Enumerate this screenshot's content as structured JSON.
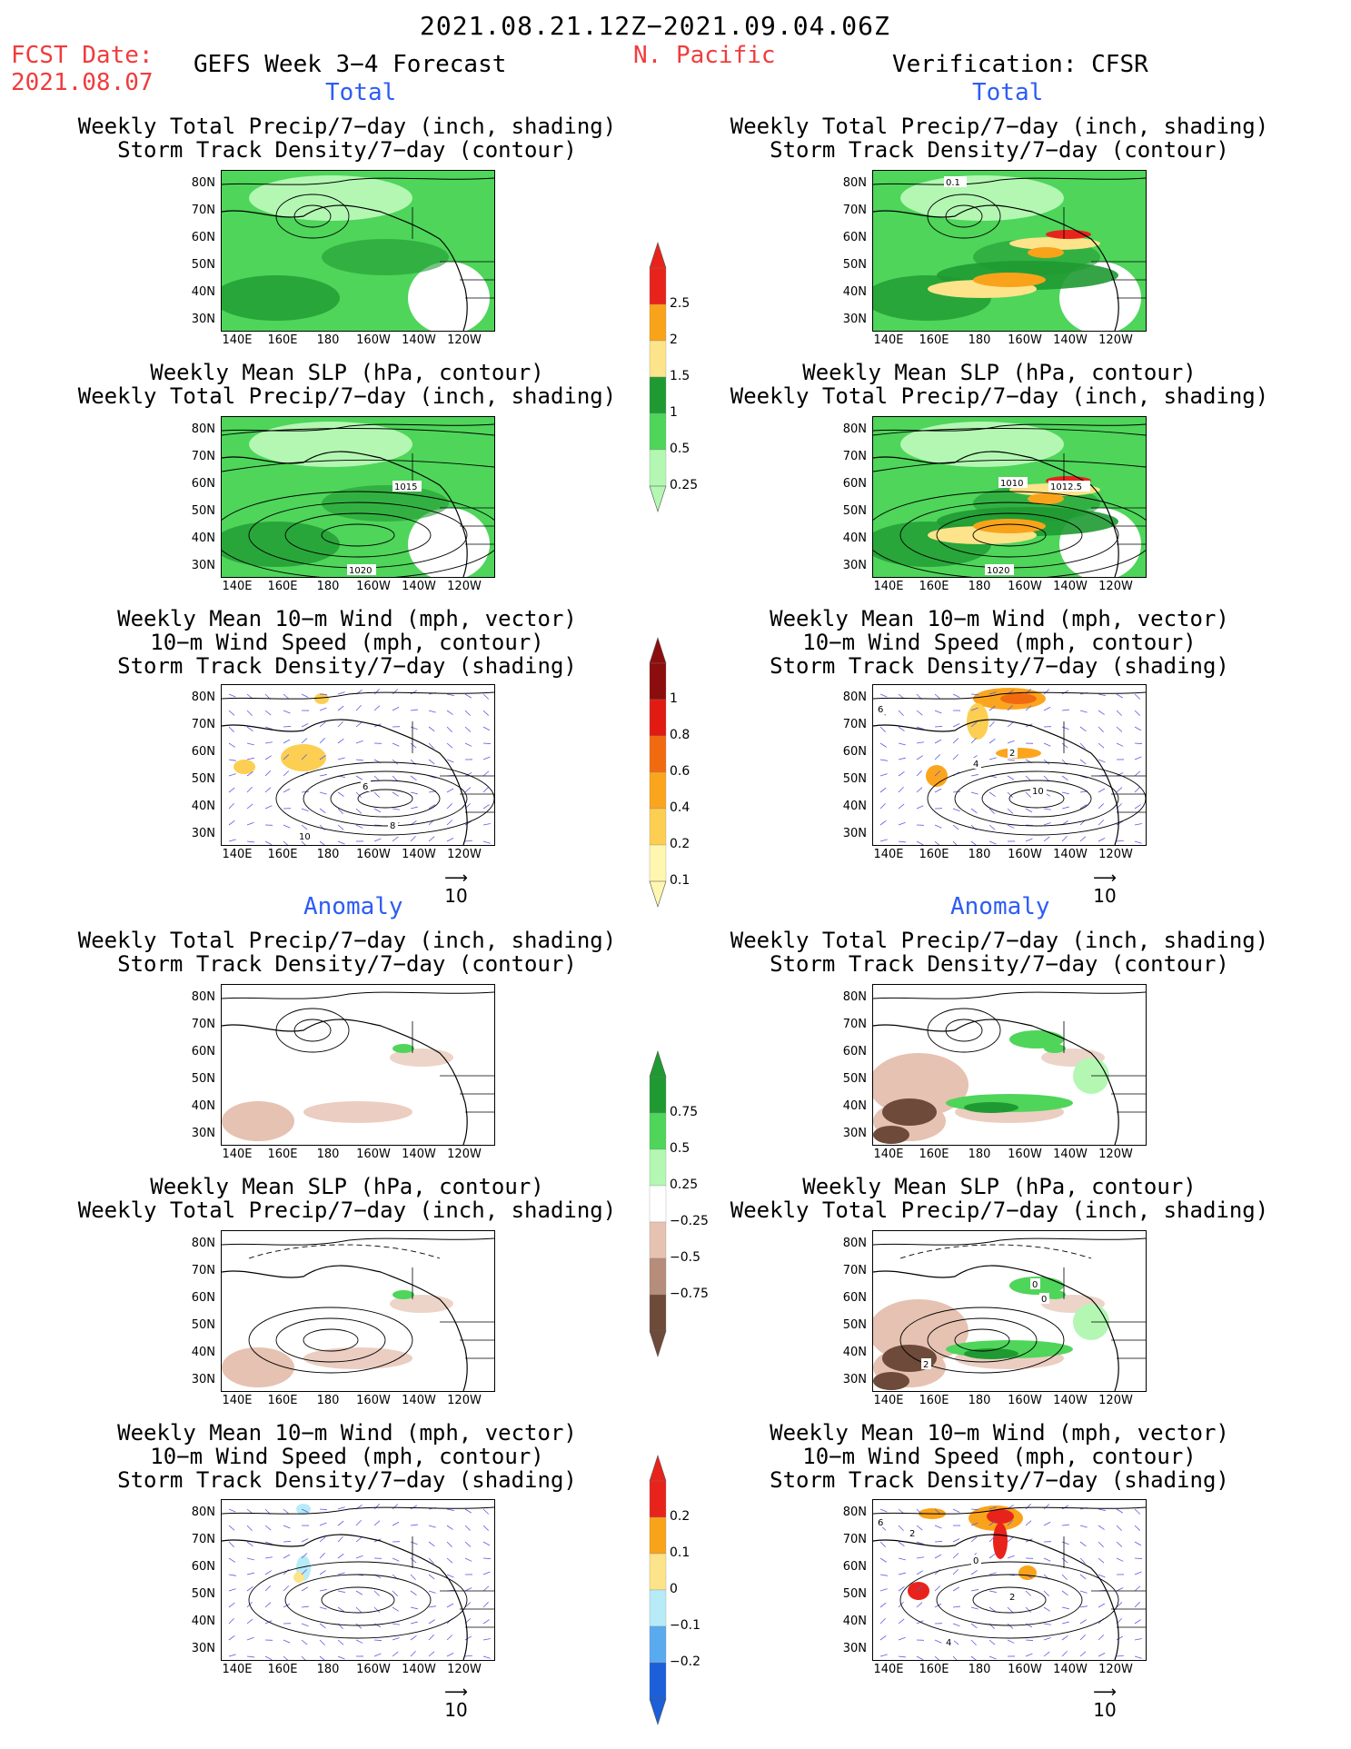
{
  "header": {
    "period": "2021.08.21.12Z−2021.09.04.06Z",
    "fcst_label": "FCST Date:",
    "fcst_date": "2021.08.07",
    "forecast_title": "GEFS Week 3−4 Forecast",
    "region": "N. Pacific",
    "verification": "Verification: CFSR"
  },
  "sections": {
    "total": "Total",
    "anomaly": "Anomaly"
  },
  "panel_titles": {
    "p1": [
      "Weekly Total Precip/7−day (inch, shading)",
      "Storm Track Density/7−day (contour)"
    ],
    "p2": [
      "Weekly Mean SLP (hPa, contour)",
      "Weekly Total Precip/7−day (inch, shading)"
    ],
    "p3": [
      "Weekly Mean 10−m Wind (mph, vector)",
      "10−m Wind Speed (mph, contour)",
      "Storm Track Density/7−day (shading)"
    ]
  },
  "axes": {
    "lat": [
      "80N",
      "70N",
      "60N",
      "50N",
      "40N",
      "30N"
    ],
    "lon": [
      "140E",
      "160E",
      "180",
      "160W",
      "140W",
      "120W"
    ]
  },
  "contour_labels": {
    "fc_slp": [
      "1015",
      "1020"
    ],
    "ver_slp": [
      "1010",
      "1012.5",
      "1020"
    ],
    "ver_std": [
      "0.1"
    ],
    "fc_wind": [
      "6",
      "8",
      "10"
    ],
    "ver_wind": [
      "6",
      "2",
      "4",
      "10"
    ],
    "ver_slp_anom": [
      "0",
      "0",
      "2"
    ],
    "ver_wind_anom": [
      "6",
      "2",
      "0",
      "2",
      "4"
    ]
  },
  "vector_ref": "10",
  "colorbars": {
    "precip": {
      "labels": [
        "2.5",
        "2",
        "1.5",
        "1",
        "0.5",
        "0.25"
      ],
      "colors": [
        "#e8231c",
        "#f9a31b",
        "#fde38a",
        "#1f9a32",
        "#4ed55a",
        "#b3f7b3"
      ]
    },
    "std": {
      "labels": [
        "1",
        "0.8",
        "0.6",
        "0.4",
        "0.2",
        "0.1"
      ],
      "colors": [
        "#8c0d0d",
        "#e11b12",
        "#f26a10",
        "#fba51e",
        "#fccf52",
        "#fff7b0"
      ]
    },
    "precip_anom": {
      "labels": [
        "0.75",
        "0.5",
        "0.25",
        "−0.25",
        "−0.5",
        "−0.75"
      ],
      "colors": [
        "#1f9a32",
        "#4ed55a",
        "#b3f7b3",
        "#ffffff",
        "#e6c2b2",
        "#b68c7a",
        "#6e4a3a"
      ]
    },
    "std_anom": {
      "labels": [
        "0.2",
        "0.1",
        "0",
        "−0.1",
        "−0.2"
      ],
      "colors": [
        "#e8231c",
        "#f9a31b",
        "#fde38a",
        "#b7ebf7",
        "#5aaaf0",
        "#1b5fd9"
      ]
    }
  }
}
